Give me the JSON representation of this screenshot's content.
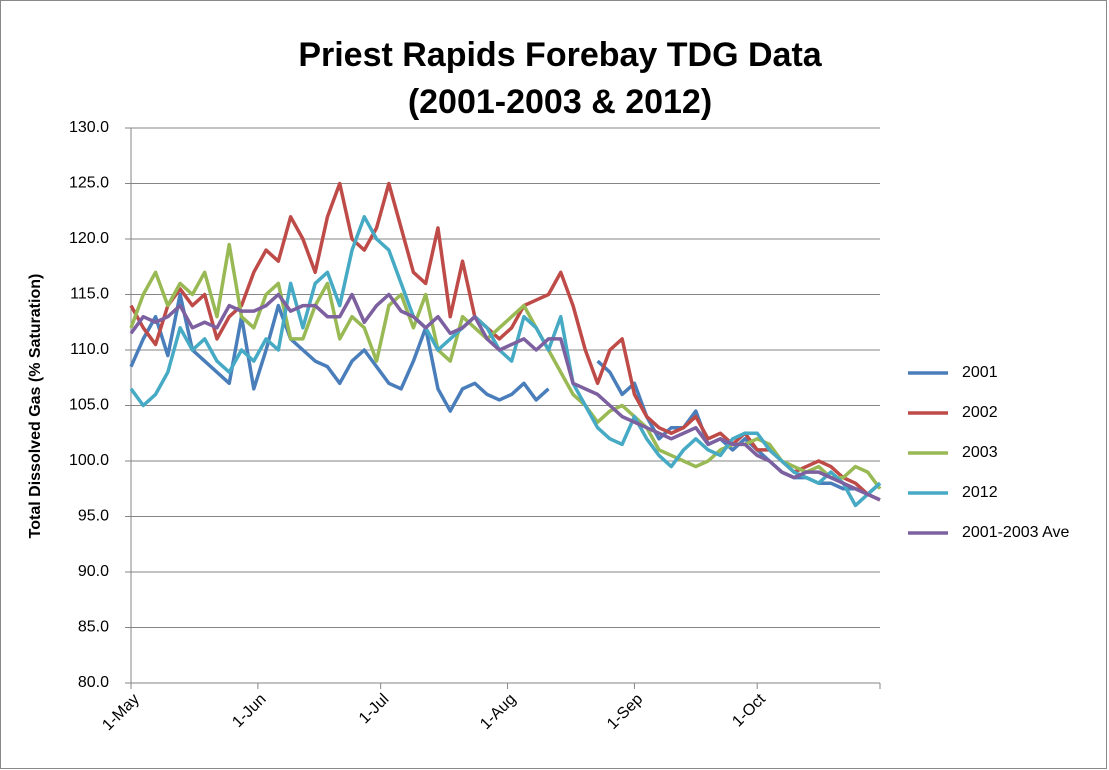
{
  "chart_data": {
    "type": "line",
    "title": [
      "Priest Rapids Forebay TDG Data",
      "(2001-2003 & 2012)"
    ],
    "y_label": "Total Dissolved Gas (% Saturation)",
    "x": [
      0,
      3,
      6,
      9,
      12,
      15,
      18,
      21,
      24,
      27,
      30,
      33,
      36,
      39,
      42,
      45,
      48,
      51,
      54,
      57,
      60,
      63,
      66,
      69,
      72,
      75,
      78,
      81,
      84,
      87,
      90,
      93,
      96,
      99,
      102,
      105,
      108,
      111,
      114,
      117,
      120,
      123,
      126,
      129,
      132,
      135,
      138,
      141,
      144,
      147,
      150,
      153,
      156,
      159,
      162,
      165,
      168,
      171,
      174,
      177,
      180,
      183
    ],
    "xlim": [
      0,
      183
    ],
    "xticks": [
      {
        "value": 0,
        "label": "1-May"
      },
      {
        "value": 31,
        "label": "1-Jun"
      },
      {
        "value": 61,
        "label": "1-Jul"
      },
      {
        "value": 92,
        "label": "1-Aug"
      },
      {
        "value": 123,
        "label": "1-Sep"
      },
      {
        "value": 153,
        "label": "1-Oct"
      },
      {
        "value": 183,
        "label": null
      }
    ],
    "ylim": [
      80,
      130
    ],
    "yticks": [
      {
        "value": 80,
        "label": "80.0"
      },
      {
        "value": 85,
        "label": "85.0"
      },
      {
        "value": 90,
        "label": "90.0"
      },
      {
        "value": 95,
        "label": "95.0"
      },
      {
        "value": 100,
        "label": "100.0"
      },
      {
        "value": 105,
        "label": "105.0"
      },
      {
        "value": 110,
        "label": "110.0"
      },
      {
        "value": 115,
        "label": "115.0"
      },
      {
        "value": 120,
        "label": "120.0"
      },
      {
        "value": 125,
        "label": "125.0"
      },
      {
        "value": 130,
        "label": "130.0"
      }
    ],
    "grid": true,
    "legend": "right",
    "series": [
      {
        "name": "2001",
        "color": "#4a7ebb",
        "values": [
          108.5,
          111,
          113,
          109.5,
          115,
          110,
          109,
          108,
          107,
          113,
          106.5,
          110,
          114,
          111,
          110,
          109,
          108.5,
          107,
          109,
          110,
          108.5,
          107,
          106.5,
          109,
          112,
          106.5,
          104.5,
          106.5,
          107,
          106,
          105.5,
          106,
          107,
          105.5,
          106.5,
          null,
          null,
          null,
          109,
          108,
          106,
          107,
          104,
          102,
          103,
          103,
          104.5,
          101.5,
          102,
          101,
          102,
          101,
          100,
          99,
          98.5,
          98.5,
          98,
          98,
          97.5,
          97.5,
          97,
          98
        ]
      },
      {
        "name": "2002",
        "color": "#be4b48",
        "values": [
          114,
          112,
          110.5,
          114,
          115.5,
          114,
          115,
          111,
          113,
          114,
          117,
          119,
          118,
          122,
          120,
          117,
          122,
          125,
          120,
          119,
          121,
          125,
          121,
          117,
          116,
          121,
          113,
          118,
          113,
          112,
          111,
          112,
          114,
          114.5,
          115,
          117,
          114,
          110,
          107,
          110,
          111,
          106,
          104,
          103,
          102.5,
          103,
          104,
          102,
          102.5,
          101.5,
          102.5,
          101,
          101,
          100,
          99,
          99.5,
          100,
          99.5,
          98.5,
          98,
          97,
          96.5
        ]
      },
      {
        "name": "2003",
        "color": "#98b954",
        "values": [
          112,
          115,
          117,
          114,
          116,
          115,
          117,
          113,
          119.5,
          113,
          112,
          115,
          116,
          111,
          111,
          114,
          116,
          111,
          113,
          112,
          109,
          114,
          115,
          112,
          115,
          110,
          109,
          113,
          112,
          111,
          112,
          113,
          114,
          112,
          110,
          108,
          106,
          105,
          103.5,
          104.5,
          105,
          104,
          103,
          101,
          100.5,
          100,
          99.5,
          100,
          101,
          101.5,
          101.5,
          102,
          101.5,
          100,
          99.5,
          99,
          99.5,
          98.5,
          98.5,
          99.5,
          99,
          97.5
        ]
      },
      {
        "name": "2012",
        "color": "#46aac5",
        "values": [
          106.5,
          105,
          106,
          108,
          112,
          110,
          111,
          109,
          108,
          110,
          109,
          111,
          110,
          116,
          112,
          116,
          117,
          114,
          119,
          122,
          120,
          119,
          116,
          113,
          112,
          110,
          111,
          112,
          113,
          112,
          110,
          109,
          113,
          112,
          110,
          113,
          107,
          105,
          103,
          102,
          101.5,
          104,
          102,
          100.5,
          99.5,
          101,
          102,
          101,
          100.5,
          102,
          102.5,
          102.5,
          101,
          100,
          99,
          98.5,
          98,
          99,
          98,
          96,
          97,
          98
        ]
      },
      {
        "name": "2001-2003 Ave",
        "color": "#7d60a0",
        "values": [
          111.5,
          113,
          112.5,
          113,
          114,
          112,
          112.5,
          112,
          114,
          113.5,
          113.5,
          114,
          115,
          113.5,
          114,
          114,
          113,
          113,
          115,
          112.5,
          114,
          115,
          113.5,
          113,
          112,
          113,
          111.5,
          112,
          113,
          111,
          110,
          110.5,
          111,
          110,
          111,
          111,
          107,
          106.5,
          106,
          105,
          104,
          103.5,
          103,
          102.5,
          102,
          102.5,
          103,
          101.5,
          102,
          101.5,
          101.5,
          100.5,
          100,
          99,
          98.5,
          99,
          99,
          98.5,
          98,
          97.5,
          97,
          96.5
        ]
      }
    ]
  }
}
